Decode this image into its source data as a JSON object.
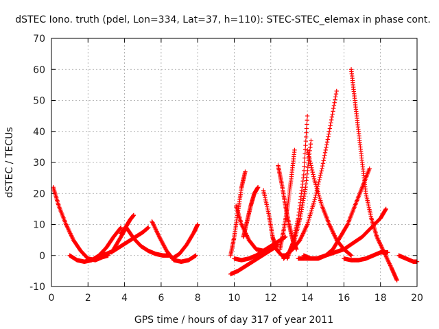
{
  "chart_data": {
    "type": "scatter",
    "title": "dSTEC Iono. truth (pdel, Lon=334, Lat=37, h=110): STEC-STEC_elemax in phase cont.",
    "xlabel": "GPS time / hours of day 317 of year 2011",
    "ylabel": "dSTEC  / TECUs",
    "xlim": [
      0,
      20
    ],
    "ylim": [
      -10,
      70
    ],
    "xticks": [
      0,
      2,
      4,
      6,
      8,
      10,
      12,
      14,
      16,
      18,
      20
    ],
    "yticks": [
      -10,
      0,
      10,
      20,
      30,
      40,
      50,
      60,
      70
    ],
    "grid": true,
    "marker": "+",
    "color": "#ff0000",
    "series": [
      {
        "x": [
          0.1,
          0.4,
          0.8,
          1.2,
          1.6,
          2.0,
          2.4,
          2.8,
          3.1
        ],
        "y": [
          22,
          16,
          10,
          5,
          1.5,
          -1,
          -1.5,
          -0.5,
          0
        ]
      },
      {
        "x": [
          1.0,
          1.4,
          1.8,
          2.2,
          2.6,
          3.0,
          3.4,
          3.8
        ],
        "y": [
          0,
          -1.5,
          -2,
          -1.5,
          0,
          2.5,
          6,
          9
        ]
      },
      {
        "x": [
          2.6,
          3.0,
          3.4,
          3.8,
          4.2,
          4.6,
          5.0,
          5.3
        ],
        "y": [
          0,
          0.5,
          1.5,
          3,
          4.5,
          6,
          7.5,
          9
        ]
      },
      {
        "x": [
          3.3,
          3.7,
          4.1,
          4.5,
          4.9,
          5.3,
          5.7,
          6.1,
          6.5
        ],
        "y": [
          1,
          5,
          9,
          5.5,
          3,
          1.5,
          0.5,
          0,
          0
        ]
      },
      {
        "x": [
          3.8,
          4.1,
          4.3,
          4.5
        ],
        "y": [
          7,
          9.5,
          11.5,
          13
        ]
      },
      {
        "x": [
          5.5,
          5.9,
          6.3,
          6.7,
          7.1,
          7.5,
          7.9
        ],
        "y": [
          11,
          6,
          1.5,
          -1.5,
          -2,
          -1.5,
          0
        ]
      },
      {
        "x": [
          6.6,
          7.0,
          7.4,
          7.8,
          8.0
        ],
        "y": [
          -1,
          0.5,
          3.5,
          7.5,
          10
        ]
      },
      {
        "x": [
          9.8,
          10.0,
          10.2,
          10.4,
          10.6
        ],
        "y": [
          0,
          6,
          14,
          22,
          27
        ]
      },
      {
        "x": [
          9.8,
          10.2,
          10.6,
          11.0,
          11.4,
          11.8,
          12.2
        ],
        "y": [
          -6,
          -5,
          -3.5,
          -2,
          -0.5,
          1,
          2.5
        ]
      },
      {
        "x": [
          10.0,
          10.4,
          10.8,
          11.2,
          11.6,
          12.0,
          12.4,
          12.8
        ],
        "y": [
          -1,
          -1.5,
          -1,
          0,
          1.5,
          3,
          4.5,
          6
        ]
      },
      {
        "x": [
          10.1,
          10.4,
          10.8,
          11.2,
          11.6,
          12.0,
          12.4
        ],
        "y": [
          16,
          10,
          5,
          2,
          1.5,
          3,
          3.5
        ]
      },
      {
        "x": [
          10.5,
          10.7,
          10.9,
          11.1,
          11.3
        ],
        "y": [
          6,
          11,
          16,
          20,
          22
        ]
      },
      {
        "x": [
          11.6,
          11.9,
          12.1,
          12.3,
          12.6,
          12.9
        ],
        "y": [
          21,
          13,
          6,
          2,
          0,
          0
        ]
      },
      {
        "x": [
          12.4,
          12.6,
          12.8,
          13.0,
          13.2,
          13.4
        ],
        "y": [
          29,
          23,
          16,
          10,
          5,
          2
        ]
      },
      {
        "x": [
          12.5,
          12.7,
          12.9,
          13.1,
          13.3
        ],
        "y": [
          2,
          8,
          15,
          24,
          34
        ]
      },
      {
        "x": [
          12.7,
          13.0,
          13.3,
          13.6,
          13.9,
          14.2
        ],
        "y": [
          -1,
          1,
          5,
          12,
          22,
          37
        ]
      },
      {
        "x": [
          12.9,
          13.2,
          13.5,
          13.8,
          14.0
        ],
        "y": [
          -1,
          4,
          12,
          26,
          45
        ]
      },
      {
        "x": [
          12.8,
          13.2,
          13.6,
          14.0,
          14.4,
          14.8,
          15.2,
          15.6
        ],
        "y": [
          0,
          2,
          5,
          10,
          18,
          28,
          40,
          53
        ]
      },
      {
        "x": [
          14.0,
          14.4,
          14.8,
          15.2,
          15.6,
          16.0,
          16.4
        ],
        "y": [
          34,
          24,
          16,
          10,
          5,
          2,
          0
        ]
      },
      {
        "x": [
          13.8,
          14.2,
          14.6,
          15.0,
          15.4,
          15.8,
          16.2,
          16.6,
          17.0,
          17.4
        ],
        "y": [
          0,
          -1,
          -1,
          0,
          2,
          6,
          10,
          16,
          22,
          28
        ]
      },
      {
        "x": [
          13.5,
          14.0,
          14.5,
          15.0,
          15.5,
          16.0,
          16.5,
          17.0,
          17.5,
          18.0,
          18.3
        ],
        "y": [
          -1,
          -1,
          -1,
          0,
          1,
          2,
          4,
          6,
          9,
          12,
          15
        ]
      },
      {
        "x": [
          16.4,
          16.6,
          16.8,
          17.0,
          17.2,
          17.5,
          17.8,
          18.2,
          18.6,
          18.9
        ],
        "y": [
          60,
          50,
          40,
          30,
          20,
          12,
          6,
          1,
          -4,
          -8
        ]
      },
      {
        "x": [
          16.0,
          16.4,
          16.8,
          17.2,
          17.6,
          18.0,
          18.4
        ],
        "y": [
          -1,
          -1.5,
          -1.5,
          -1,
          0,
          1,
          1
        ]
      },
      {
        "x": [
          19.0,
          19.4,
          19.8,
          20.0
        ],
        "y": [
          0,
          -1,
          -2,
          -2
        ]
      }
    ]
  }
}
